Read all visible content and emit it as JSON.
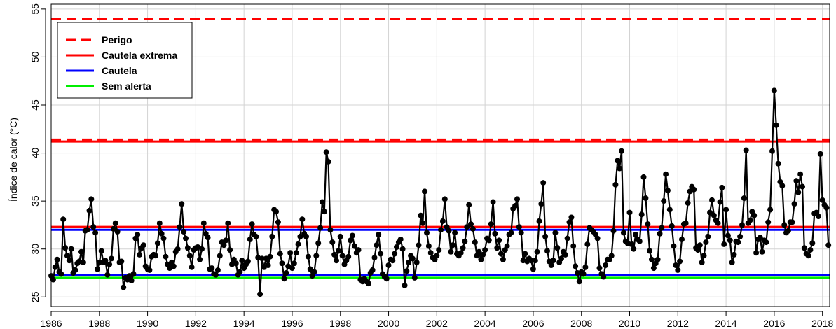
{
  "chart_data": {
    "type": "line",
    "title": "",
    "xlabel": "",
    "ylabel": "Índice de calor (°C)",
    "xlim": [
      1986,
      2018.3
    ],
    "ylim": [
      24,
      55.5
    ],
    "x_ticks": [
      "1986",
      "1988",
      "1990",
      "1992",
      "1994",
      "1996",
      "1998",
      "2000",
      "2002",
      "2004",
      "2006",
      "2008",
      "2010",
      "2012",
      "2014",
      "2016",
      "2018"
    ],
    "y_ticks": [
      "25",
      "30",
      "35",
      "40",
      "45",
      "50",
      "55"
    ],
    "grid": true,
    "legend": {
      "position": "top-left",
      "entries": [
        {
          "label": "Perigo",
          "color": "#ff0000",
          "style": "dashed"
        },
        {
          "label": "Cautela extrema",
          "color": "#ff0000",
          "style": "solid"
        },
        {
          "label": "Cautela",
          "color": "#0000ff",
          "style": "solid"
        },
        {
          "label": "Sem alerta",
          "color": "#00ee00",
          "style": "solid"
        }
      ]
    },
    "reference_lines": [
      {
        "y": 54,
        "color": "#ff0000",
        "style": "dashed"
      },
      {
        "y": 41.4,
        "color": "#ff0000",
        "style": "dashed"
      },
      {
        "y": 41.2,
        "color": "#ff0000",
        "style": "solid"
      },
      {
        "y": 32.3,
        "color": "#ff0000",
        "style": "solid"
      },
      {
        "y": 32.0,
        "color": "#0000ff",
        "style": "solid"
      },
      {
        "y": 27.3,
        "color": "#0000ff",
        "style": "solid"
      },
      {
        "y": 27.0,
        "color": "#00ee00",
        "style": "solid"
      }
    ],
    "series": [
      {
        "color": "#000000",
        "start_year": 1986.0,
        "step": 0.08333,
        "values": [
          27.2,
          26.8,
          28.1,
          28.9,
          27.6,
          27.4,
          33.1,
          30.1,
          29.3,
          28.8,
          30.0,
          27.5,
          27.8,
          28.5,
          28.7,
          29.7,
          28.6,
          31.9,
          32.0,
          34.0,
          35.2,
          32.3,
          31.7,
          27.9,
          28.6,
          29.8,
          28.6,
          28.8,
          27.3,
          28.4,
          29.0,
          32.1,
          32.7,
          31.8,
          28.6,
          28.7,
          26.0,
          27.0,
          26.8,
          27.2,
          26.7,
          27.4,
          31.1,
          31.5,
          29.4,
          30.1,
          30.4,
          28.2,
          27.9,
          27.8,
          29.2,
          29.4,
          29.3,
          30.6,
          32.7,
          31.6,
          31.1,
          29.2,
          28.4,
          28.0,
          28.6,
          28.2,
          29.7,
          30.0,
          32.3,
          34.7,
          31.8,
          31.1,
          30.1,
          29.3,
          28.1,
          29.9,
          30.1,
          30.2,
          28.9,
          30.0,
          32.7,
          31.6,
          31.2,
          27.9,
          28.0,
          27.4,
          27.3,
          27.8,
          29.3,
          30.7,
          30.4,
          30.9,
          32.7,
          29.9,
          28.4,
          28.9,
          28.5,
          27.3,
          27.6,
          28.8,
          28.0,
          28.4,
          28.7,
          31.0,
          32.6,
          31.5,
          31.3,
          29.1,
          25.3,
          29.0,
          28.1,
          29.0,
          28.3,
          29.2,
          31.3,
          34.1,
          33.9,
          32.8,
          29.5,
          28.5,
          26.9,
          27.5,
          28.2,
          29.6,
          28.0,
          28.5,
          29.6,
          30.5,
          31.3,
          33.1,
          31.6,
          31.3,
          29.2,
          27.9,
          27.2,
          27.6,
          29.3,
          30.6,
          32.2,
          34.9,
          33.9,
          40.1,
          39.1,
          32.0,
          30.7,
          29.4,
          28.8,
          29.8,
          31.3,
          29.3,
          28.4,
          28.8,
          29.2,
          30.9,
          31.4,
          30.3,
          29.6,
          29.9,
          26.8,
          26.6,
          26.9,
          26.6,
          26.4,
          27.5,
          27.8,
          29.1,
          30.4,
          31.5,
          29.5,
          27.4,
          27.1,
          26.9,
          28.3,
          28.9,
          28.8,
          29.5,
          30.2,
          30.7,
          31.0,
          30.0,
          26.2,
          27.7,
          28.6,
          29.3,
          29.0,
          27.0,
          28.6,
          30.4,
          33.5,
          32.7,
          36.0,
          31.7,
          30.3,
          29.6,
          29.1,
          28.9,
          29.3,
          29.9,
          32.0,
          32.9,
          35.2,
          32.3,
          31.9,
          29.7,
          30.4,
          31.7,
          29.5,
          29.3,
          29.6,
          30.1,
          30.8,
          32.3,
          34.6,
          32.6,
          32.1,
          30.7,
          29.3,
          29.7,
          28.9,
          29.4,
          29.9,
          31.1,
          30.9,
          32.6,
          34.9,
          31.6,
          30.1,
          30.9,
          29.5,
          28.9,
          29.9,
          30.3,
          31.5,
          31.7,
          34.2,
          34.5,
          35.2,
          32.3,
          31.7,
          28.8,
          29.5,
          28.7,
          29.0,
          28.8,
          27.9,
          28.8,
          29.7,
          32.9,
          34.7,
          36.9,
          31.3,
          29.8,
          28.7,
          28.3,
          28.8,
          31.7,
          30.1,
          28.6,
          29.0,
          29.7,
          29.4,
          31.1,
          32.8,
          33.3,
          30.3,
          28.2,
          27.5,
          26.6,
          27.6,
          27.4,
          28.1,
          30.5,
          32.2,
          32.0,
          31.8,
          31.5,
          31.1,
          28.0,
          27.4,
          27.1,
          28.3,
          28.9,
          28.9,
          29.3,
          31.9,
          36.7,
          39.2,
          38.4,
          40.2,
          31.7,
          30.8,
          30.6,
          33.8,
          30.5,
          30.0,
          31.5,
          31.0,
          30.8,
          33.6,
          37.5,
          35.3,
          32.6,
          29.8,
          28.9,
          28.0,
          28.5,
          28.9,
          31.6,
          32.2,
          35.0,
          37.8,
          36.1,
          34.1,
          32.4,
          30.3,
          28.3,
          27.8,
          28.7,
          31.0,
          32.6,
          32.7,
          34.8,
          36.0,
          36.5,
          36.2,
          30.1,
          29.9,
          30.4,
          28.6,
          29.3,
          30.7,
          31.3,
          33.8,
          35.1,
          33.5,
          33.0,
          32.7,
          34.9,
          36.4,
          30.5,
          34.1,
          31.4,
          30.9,
          28.6,
          29.4,
          30.8,
          30.7,
          31.3,
          32.5,
          35.3,
          40.3,
          32.7,
          33.0,
          33.9,
          33.5,
          29.6,
          31.0,
          31.2,
          29.7,
          30.9,
          30.7,
          32.8,
          34.1,
          40.2,
          46.5,
          42.9,
          38.9,
          37.0,
          36.6,
          32.5,
          31.7,
          31.9,
          32.8,
          32.8,
          34.7,
          37.1,
          35.9,
          37.8,
          36.5,
          30.1,
          29.5,
          29.3,
          29.9,
          30.6,
          33.7,
          33.8,
          33.4,
          39.9,
          35.1,
          34.6,
          34.3,
          30.4
        ]
      }
    ]
  }
}
